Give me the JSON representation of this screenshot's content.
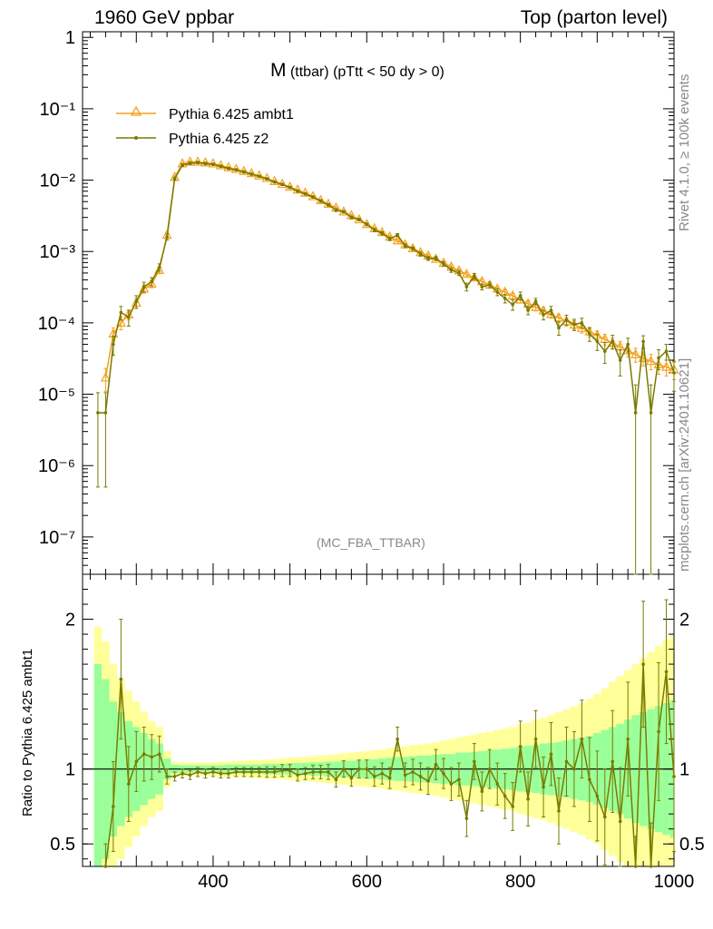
{
  "header": {
    "left": "1960 GeV ppbar",
    "right": "Top (parton level)"
  },
  "plot_title": {
    "main": "M",
    "detail": "(ttbar) (pTtt < 50 dy > 0)"
  },
  "side_labels": {
    "rivet": "Rivet 4.1.0, ≥ 100k events",
    "source": "mcplots.cern.ch [arXiv:2401.10621]"
  },
  "analysis_tag": "(MC_FBA_TTBAR)",
  "ratio_ylabel": "Ratio to Pythia 6.425 ambt1",
  "colors": {
    "ambt1": "#f4a11b",
    "z2": "#7a7a00",
    "band_outer": "#ffff99",
    "band_inner": "#99ff99",
    "grey_text": "#888888"
  },
  "chart_data": [
    {
      "type": "line",
      "title": "M (ttbar) (pTtt < 50 dy > 0)",
      "xlabel": "",
      "ylabel": "",
      "xlim": [
        230,
        1000
      ],
      "ylim": [
        3e-08,
        1.2
      ],
      "yscale": "log",
      "ytick_labels": [
        "10⁻⁷",
        "10⁻⁶",
        "10⁻⁵",
        "10⁻⁴",
        "10⁻³",
        "10⁻²",
        "10⁻¹",
        "1"
      ],
      "legend_position": "top-left",
      "x": [
        250,
        260,
        270,
        280,
        290,
        300,
        310,
        320,
        330,
        340,
        350,
        360,
        370,
        380,
        390,
        400,
        410,
        420,
        430,
        440,
        450,
        460,
        470,
        480,
        490,
        500,
        510,
        520,
        530,
        540,
        550,
        560,
        570,
        580,
        590,
        600,
        610,
        620,
        630,
        640,
        650,
        660,
        670,
        680,
        690,
        700,
        710,
        720,
        730,
        740,
        750,
        760,
        770,
        780,
        790,
        800,
        810,
        820,
        830,
        840,
        850,
        860,
        870,
        880,
        890,
        900,
        910,
        920,
        930,
        940,
        950,
        960,
        970,
        980,
        990,
        1000
      ],
      "series": [
        {
          "name": "Pythia 6.425 ambt1",
          "marker": "triangle",
          "values": [
            null,
            1.7e-05,
            7e-05,
            0.0001,
            0.00013,
            0.00019,
            0.0003,
            0.00035,
            0.00055,
            0.0017,
            0.011,
            0.017,
            0.018,
            0.018,
            0.0175,
            0.017,
            0.016,
            0.015,
            0.0142,
            0.0133,
            0.0124,
            0.0115,
            0.0106,
            0.0096,
            0.0088,
            0.008,
            0.0073,
            0.0066,
            0.0059,
            0.0052,
            0.0046,
            0.0041,
            0.0036,
            0.0032,
            0.0028,
            0.0024,
            0.0021,
            0.00185,
            0.0016,
            0.00142,
            0.00125,
            0.0011,
            0.00097,
            0.00087,
            0.00078,
            0.00069,
            0.00061,
            0.00054,
            0.00048,
            0.00043,
            0.00038,
            0.00034,
            0.0003,
            0.00027,
            0.00024,
            0.00021,
            0.000185,
            0.000165,
            0.000148,
            0.000132,
            0.000118,
            0.000105,
            9.4e-05,
            8.4e-05,
            7.5e-05,
            6.7e-05,
            5.9e-05,
            5.2e-05,
            4.6e-05,
            4.1e-05,
            3.6e-05,
            3.2e-05,
            2.9e-05,
            2.6e-05,
            2.4e-05,
            2.2e-05
          ],
          "errors": [
            0,
            6e-06,
            1.5e-05,
            2e-05,
            2e-05,
            3e-05,
            4e-05,
            4e-05,
            6e-05,
            0.00015,
            0.0005,
            0.0006,
            0.0006,
            0.0006,
            0.0005,
            0.0005,
            0.0005,
            0.0004,
            0.0004,
            0.0004,
            0.0004,
            0.0003,
            0.0003,
            0.0003,
            0.0003,
            0.0002,
            0.0002,
            0.0002,
            0.0002,
            0.0002,
            0.00015,
            0.00014,
            0.00013,
            0.00012,
            0.00011,
            0.0001,
            9e-05,
            8e-05,
            7e-05,
            7e-05,
            6e-05,
            6e-05,
            5e-05,
            5e-05,
            4e-05,
            4e-05,
            4e-05,
            3e-05,
            3e-05,
            3e-05,
            3e-05,
            3e-05,
            2e-05,
            2e-05,
            2e-05,
            2e-05,
            2e-05,
            1.8e-05,
            1.7e-05,
            1.6e-05,
            1.5e-05,
            1.4e-05,
            1.3e-05,
            1.2e-05,
            1.1e-05,
            1e-05,
            1e-05,
            9e-06,
            9e-06,
            8e-06,
            8e-06,
            7e-06,
            7e-06,
            7e-06,
            6e-06,
            6e-06
          ]
        },
        {
          "name": "Pythia 6.425 z2",
          "marker": "dot",
          "values": [
            5.5e-06,
            5.5e-06,
            5e-05,
            0.00014,
            0.00012,
            0.0002,
            0.00032,
            0.00038,
            0.0006,
            0.0016,
            0.0105,
            0.0162,
            0.0172,
            0.0176,
            0.017,
            0.0166,
            0.0156,
            0.0146,
            0.0139,
            0.013,
            0.0121,
            0.0113,
            0.0104,
            0.0094,
            0.0087,
            0.0079,
            0.007,
            0.0064,
            0.0058,
            0.0051,
            0.0045,
            0.0038,
            0.0036,
            0.003,
            0.0028,
            0.0024,
            0.002,
            0.0018,
            0.0015,
            0.0017,
            0.0012,
            0.0011,
            0.00092,
            0.0008,
            0.0008,
            0.00067,
            0.00055,
            0.0005,
            0.00032,
            0.00045,
            0.00032,
            0.00034,
            0.00027,
            0.00022,
            0.00018,
            0.00024,
            0.00015,
            0.0002,
            0.00013,
            0.00015,
            8.5e-05,
            0.00011,
            9.5e-05,
            0.0001,
            7e-05,
            5.5e-05,
            4e-05,
            5.5e-05,
            3e-05,
            5e-05,
            5.5e-06,
            5.5e-05,
            5.5e-06,
            3.2e-05,
            4e-05,
            2e-05
          ],
          "errors": [
            5e-06,
            5e-06,
            1.5e-05,
            3e-05,
            3e-05,
            4e-05,
            5e-05,
            5e-05,
            7e-05,
            0.00015,
            0.0005,
            0.0006,
            0.0006,
            0.0006,
            0.0006,
            0.0005,
            0.0005,
            0.0005,
            0.0004,
            0.0004,
            0.0004,
            0.0003,
            0.0003,
            0.0003,
            0.0003,
            0.0003,
            0.0002,
            0.0002,
            0.0002,
            0.0002,
            0.00018,
            0.00016,
            0.00015,
            0.00013,
            0.00012,
            0.00011,
            0.0001,
            9e-05,
            8e-05,
            8e-05,
            7e-05,
            6e-05,
            6e-05,
            5e-05,
            5e-05,
            5e-05,
            4e-05,
            4e-05,
            4e-05,
            4e-05,
            3e-05,
            3e-05,
            3e-05,
            3e-05,
            3e-05,
            3e-05,
            2e-05,
            2e-05,
            2e-05,
            2e-05,
            1.8e-05,
            1.8e-05,
            1.7e-05,
            1.6e-05,
            1.5e-05,
            1.4e-05,
            1.3e-05,
            1.2e-05,
            1.2e-05,
            1.1e-05,
            8e-06,
            1.1e-05,
            8e-06,
            1e-05,
            1e-05,
            9e-06
          ]
        }
      ]
    },
    {
      "type": "line",
      "title": "",
      "xlabel": "",
      "ylabel": "Ratio to Pythia 6.425 ambt1",
      "xlim": [
        230,
        1000
      ],
      "ylim": [
        0.35,
        2.3
      ],
      "xtick_labels": [
        "400",
        "600",
        "800",
        "1000"
      ],
      "ytick_labels": [
        "0.5",
        "1",
        "2"
      ],
      "reference_line": 1,
      "band_inner_halfwidth": [
        0.7,
        0.6,
        0.45,
        0.38,
        0.32,
        0.28,
        0.24,
        0.2,
        0.17,
        0.07,
        0.03,
        0.025,
        0.025,
        0.025,
        0.025,
        0.025,
        0.025,
        0.03,
        0.03,
        0.03,
        0.03,
        0.03,
        0.035,
        0.035,
        0.035,
        0.04,
        0.04,
        0.04,
        0.045,
        0.045,
        0.05,
        0.05,
        0.055,
        0.055,
        0.06,
        0.065,
        0.065,
        0.07,
        0.075,
        0.08,
        0.08,
        0.085,
        0.09,
        0.09,
        0.095,
        0.1,
        0.1,
        0.11,
        0.11,
        0.115,
        0.12,
        0.125,
        0.13,
        0.135,
        0.14,
        0.15,
        0.155,
        0.16,
        0.17,
        0.175,
        0.18,
        0.19,
        0.2,
        0.21,
        0.22,
        0.24,
        0.26,
        0.28,
        0.3,
        0.33,
        0.36,
        0.38,
        0.4,
        0.42,
        0.44,
        0.46
      ],
      "band_outer_halfwidth": [
        0.95,
        0.85,
        0.7,
        0.6,
        0.52,
        0.45,
        0.38,
        0.32,
        0.28,
        0.12,
        0.05,
        0.045,
        0.045,
        0.045,
        0.045,
        0.045,
        0.05,
        0.05,
        0.055,
        0.055,
        0.06,
        0.06,
        0.065,
        0.065,
        0.07,
        0.075,
        0.08,
        0.08,
        0.085,
        0.09,
        0.095,
        0.1,
        0.105,
        0.11,
        0.115,
        0.12,
        0.125,
        0.13,
        0.14,
        0.145,
        0.15,
        0.16,
        0.165,
        0.17,
        0.18,
        0.19,
        0.2,
        0.21,
        0.22,
        0.23,
        0.24,
        0.25,
        0.26,
        0.27,
        0.28,
        0.3,
        0.31,
        0.33,
        0.34,
        0.36,
        0.38,
        0.4,
        0.42,
        0.44,
        0.47,
        0.5,
        0.54,
        0.58,
        0.62,
        0.66,
        0.7,
        0.74,
        0.78,
        0.82,
        0.86,
        0.9
      ],
      "series": [
        {
          "name": "Pythia 6.425 z2",
          "values": [
            null,
            0.3,
            0.75,
            1.6,
            0.9,
            1.05,
            1.1,
            1.08,
            1.1,
            0.95,
            0.95,
            0.97,
            0.96,
            0.98,
            0.97,
            0.98,
            0.97,
            0.97,
            0.98,
            0.98,
            0.98,
            0.98,
            0.98,
            0.98,
            0.99,
            0.99,
            0.96,
            0.97,
            0.98,
            0.98,
            0.98,
            0.93,
            1.0,
            0.94,
            1.0,
            1.0,
            0.95,
            0.97,
            0.94,
            1.2,
            0.96,
            0.98,
            0.95,
            0.92,
            1.03,
            0.97,
            0.9,
            0.93,
            0.67,
            1.05,
            0.85,
            1.0,
            0.9,
            0.82,
            0.75,
            1.15,
            0.8,
            1.2,
            0.88,
            1.1,
            0.72,
            1.05,
            1.0,
            1.2,
            0.93,
            0.82,
            0.68,
            1.05,
            0.65,
            1.2,
            0.15,
            1.7,
            0.2,
            1.25,
            1.65,
            0.95
          ],
          "errors": [
            0,
            0.2,
            0.3,
            0.4,
            0.25,
            0.2,
            0.18,
            0.15,
            0.12,
            0.05,
            0.03,
            0.03,
            0.03,
            0.03,
            0.03,
            0.03,
            0.03,
            0.03,
            0.03,
            0.03,
            0.03,
            0.03,
            0.035,
            0.035,
            0.04,
            0.04,
            0.04,
            0.04,
            0.045,
            0.045,
            0.05,
            0.05,
            0.055,
            0.055,
            0.06,
            0.06,
            0.065,
            0.07,
            0.07,
            0.08,
            0.08,
            0.085,
            0.09,
            0.09,
            0.1,
            0.1,
            0.11,
            0.11,
            0.12,
            0.12,
            0.13,
            0.13,
            0.14,
            0.15,
            0.16,
            0.17,
            0.18,
            0.19,
            0.2,
            0.21,
            0.22,
            0.23,
            0.25,
            0.26,
            0.28,
            0.3,
            0.32,
            0.34,
            0.36,
            0.38,
            0.4,
            0.42,
            0.44,
            0.46,
            0.48,
            0.5
          ]
        }
      ]
    }
  ]
}
